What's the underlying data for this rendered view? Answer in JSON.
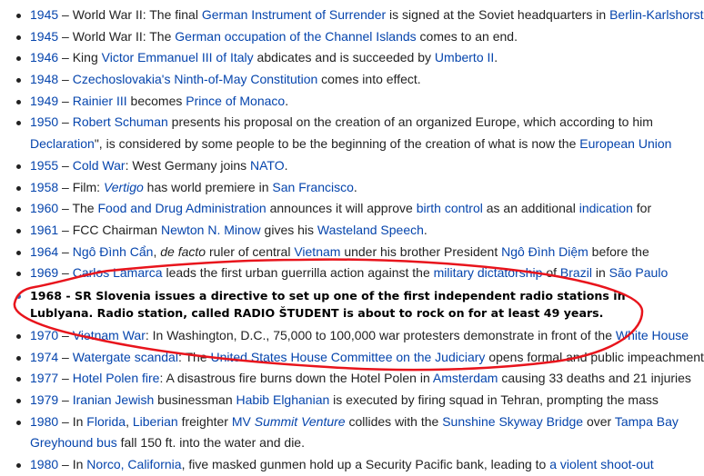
{
  "accent_link_color": "#0645ad",
  "annotation_color": "#e8141c",
  "items": [
    {
      "lines": [
        [
          {
            "t": "1945",
            "l": 1
          },
          {
            "t": " – World War II: The final "
          },
          {
            "t": "German Instrument of Surrender",
            "l": 1
          },
          {
            "t": " is signed at the Soviet headquarters in "
          },
          {
            "t": "Berlin-Karlshorst",
            "l": 1
          }
        ]
      ]
    },
    {
      "lines": [
        [
          {
            "t": "1945",
            "l": 1
          },
          {
            "t": " – World War II: The "
          },
          {
            "t": "German occupation of the Channel Islands",
            "l": 1
          },
          {
            "t": " comes to an end."
          }
        ]
      ]
    },
    {
      "lines": [
        [
          {
            "t": "1946",
            "l": 1
          },
          {
            "t": " – King "
          },
          {
            "t": "Victor Emmanuel III of Italy",
            "l": 1
          },
          {
            "t": " abdicates and is succeeded by "
          },
          {
            "t": "Umberto II",
            "l": 1
          },
          {
            "t": "."
          }
        ]
      ]
    },
    {
      "lines": [
        [
          {
            "t": "1948",
            "l": 1
          },
          {
            "t": " – "
          },
          {
            "t": "Czechoslovakia's Ninth-of-May Constitution",
            "l": 1
          },
          {
            "t": " comes into effect."
          }
        ]
      ]
    },
    {
      "lines": [
        [
          {
            "t": "1949",
            "l": 1
          },
          {
            "t": " – "
          },
          {
            "t": "Rainier III",
            "l": 1
          },
          {
            "t": " becomes "
          },
          {
            "t": "Prince of Monaco",
            "l": 1
          },
          {
            "t": "."
          }
        ]
      ]
    },
    {
      "lines": [
        [
          {
            "t": "1950",
            "l": 1
          },
          {
            "t": " – "
          },
          {
            "t": "Robert Schuman",
            "l": 1
          },
          {
            "t": " presents his proposal on the creation of an organized Europe, which according to him"
          }
        ],
        [
          {
            "t": "Declaration",
            "l": 1
          },
          {
            "t": "\", is considered by some people to be the beginning of the creation of what is now the "
          },
          {
            "t": "European Union",
            "l": 1
          }
        ]
      ]
    },
    {
      "lines": [
        [
          {
            "t": "1955",
            "l": 1
          },
          {
            "t": " – "
          },
          {
            "t": "Cold War",
            "l": 1
          },
          {
            "t": ": West Germany joins "
          },
          {
            "t": "NATO",
            "l": 1
          },
          {
            "t": "."
          }
        ]
      ]
    },
    {
      "lines": [
        [
          {
            "t": "1958",
            "l": 1
          },
          {
            "t": " – Film: "
          },
          {
            "t": "Vertigo",
            "l": 1,
            "i": 1
          },
          {
            "t": " has world premiere in "
          },
          {
            "t": "San Francisco",
            "l": 1
          },
          {
            "t": "."
          }
        ]
      ]
    },
    {
      "lines": [
        [
          {
            "t": "1960",
            "l": 1
          },
          {
            "t": " – The "
          },
          {
            "t": "Food and Drug Administration",
            "l": 1
          },
          {
            "t": " announces it will approve "
          },
          {
            "t": "birth control",
            "l": 1
          },
          {
            "t": " as an additional "
          },
          {
            "t": "indication",
            "l": 1
          },
          {
            "t": " for"
          }
        ]
      ]
    },
    {
      "lines": [
        [
          {
            "t": "1961",
            "l": 1
          },
          {
            "t": " – FCC Chairman "
          },
          {
            "t": "Newton N. Minow",
            "l": 1
          },
          {
            "t": " gives his "
          },
          {
            "t": "Wasteland Speech",
            "l": 1
          },
          {
            "t": "."
          }
        ]
      ]
    },
    {
      "lines": [
        [
          {
            "t": "1964",
            "l": 1
          },
          {
            "t": " – "
          },
          {
            "t": "Ngô Đình Cẩn",
            "l": 1
          },
          {
            "t": ", "
          },
          {
            "t": "de facto",
            "i": 1
          },
          {
            "t": " ruler of central "
          },
          {
            "t": "Vietnam",
            "l": 1
          },
          {
            "t": " under his brother President "
          },
          {
            "t": "Ngô Đình Diệm",
            "l": 1
          },
          {
            "t": " before the"
          }
        ]
      ]
    },
    {
      "lines": [
        [
          {
            "t": "1969",
            "l": 1
          },
          {
            "t": " – "
          },
          {
            "t": "Carlos Lamarca",
            "l": 1
          },
          {
            "t": " leads the first urban guerrilla action against the "
          },
          {
            "t": "military dictatorship",
            "l": 1
          },
          {
            "t": " of "
          },
          {
            "t": "Brazil",
            "l": 1
          },
          {
            "t": " in "
          },
          {
            "t": "São Paulo",
            "l": 1
          }
        ]
      ]
    },
    {
      "bold": true,
      "lines": [
        [
          {
            "t": "1968 - SR Slovenia issues a directive to set up one of the first independent radio stations in"
          }
        ],
        [
          {
            "t": "Lublyana. Radio station, called RADIO ŠTUDENT is about to rock on for at least 49 years."
          }
        ]
      ]
    },
    {
      "lines": [
        [
          {
            "t": "1970",
            "l": 1
          },
          {
            "t": " – "
          },
          {
            "t": "Vietnam War",
            "l": 1
          },
          {
            "t": ": In Washington, D.C., 75,000 to 100,000 war protesters demonstrate in front of the "
          },
          {
            "t": "White House",
            "l": 1
          }
        ]
      ]
    },
    {
      "lines": [
        [
          {
            "t": "1974",
            "l": 1
          },
          {
            "t": " – "
          },
          {
            "t": "Watergate scandal",
            "l": 1
          },
          {
            "t": ": The "
          },
          {
            "t": "United States House Committee on the Judiciary",
            "l": 1
          },
          {
            "t": " opens formal and public impeachment"
          }
        ]
      ]
    },
    {
      "lines": [
        [
          {
            "t": "1977",
            "l": 1
          },
          {
            "t": " – "
          },
          {
            "t": "Hotel Polen fire",
            "l": 1
          },
          {
            "t": ": A disastrous fire burns down the Hotel Polen in "
          },
          {
            "t": "Amsterdam",
            "l": 1
          },
          {
            "t": " causing 33 deaths and 21 injuries"
          }
        ]
      ]
    },
    {
      "lines": [
        [
          {
            "t": "1979",
            "l": 1
          },
          {
            "t": " – "
          },
          {
            "t": "Iranian Jewish",
            "l": 1
          },
          {
            "t": " businessman "
          },
          {
            "t": "Habib Elghanian",
            "l": 1
          },
          {
            "t": " is executed by firing squad in Tehran, prompting the mass"
          }
        ]
      ]
    },
    {
      "lines": [
        [
          {
            "t": "1980",
            "l": 1
          },
          {
            "t": " – In "
          },
          {
            "t": "Florida",
            "l": 1
          },
          {
            "t": ", "
          },
          {
            "t": "Liberian",
            "l": 1
          },
          {
            "t": " freighter "
          },
          {
            "t": "MV ",
            "l": 1
          },
          {
            "t": "Summit Venture",
            "l": 1,
            "i": 1
          },
          {
            "t": " collides with the "
          },
          {
            "t": "Sunshine Skyway Bridge",
            "l": 1
          },
          {
            "t": " over "
          },
          {
            "t": "Tampa Bay",
            "l": 1
          }
        ],
        [
          {
            "t": "Greyhound bus",
            "l": 1
          },
          {
            "t": " fall 150 ft. into the water and die."
          }
        ]
      ]
    },
    {
      "lines": [
        [
          {
            "t": "1980",
            "l": 1
          },
          {
            "t": " – In "
          },
          {
            "t": "Norco, California",
            "l": 1
          },
          {
            "t": ", five masked gunmen hold up a Security Pacific bank, leading to "
          },
          {
            "t": "a violent shoot-out",
            "l": 1
          }
        ]
      ]
    }
  ]
}
